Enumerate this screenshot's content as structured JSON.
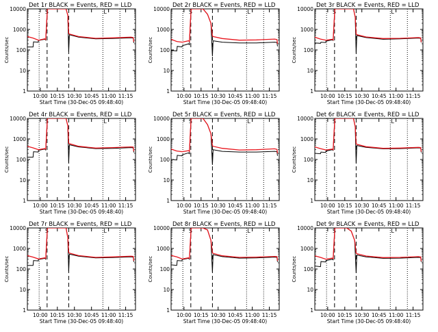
{
  "figure": {
    "x_tick_labels": [
      "10:00",
      "10:15",
      "10:30",
      "10:45",
      "11:00",
      "11:15"
    ],
    "y_tick_labels": [
      "1",
      "10",
      "100",
      "1000",
      "10000"
    ],
    "xlabel": "Start Time (30-Dec-05 09:48:40)",
    "ylabel": "Counts/sec",
    "marker_labels": [
      "S",
      "L"
    ]
  },
  "colors": {
    "events": "#000000",
    "lld": "#e8141c",
    "grid": "#000000"
  },
  "chart_data": [
    {
      "type": "line",
      "title": "Det 1r BLACK = Events, RED = LLD",
      "xlabel": "Start Time (30-Dec-05 09:48:40)",
      "ylabel": "Counts/sec",
      "y_scale": "log",
      "ylim": [
        1,
        10000
      ],
      "x_unit": "minutes after 09:48:40",
      "xlim": [
        0,
        95
      ],
      "x_ticks": [
        11.33,
        26.33,
        41.33,
        56.33,
        71.33,
        86.33
      ],
      "dotted_lines_x": [
        10.33,
        66.33,
        81.33
      ],
      "dashed_lines_x": [
        17.33,
        36.33
      ],
      "series": [
        {
          "name": "BLACK = Events",
          "x": [
            0,
            5,
            5.4,
            9.5,
            9.8,
            15.3,
            16.1,
            16.9,
            17.6,
            31,
            34,
            35.5,
            36.3,
            36.9,
            45,
            60,
            75,
            91,
            93,
            93.5
          ],
          "y": [
            140,
            140,
            250,
            240,
            290,
            330,
            300,
            2000,
            10000,
            10000,
            10000,
            5000,
            80,
            550,
            420,
            350,
            360,
            390,
            380,
            220
          ]
        },
        {
          "name": "RED = LLD",
          "x": [
            0,
            5,
            9.8,
            15.3,
            16.1,
            16.9,
            17.6,
            31,
            34,
            35.5,
            36.3,
            36.9,
            45,
            60,
            75,
            91,
            93,
            93.5
          ],
          "y": [
            450,
            380,
            300,
            350,
            320,
            2000,
            10000,
            10000,
            10000,
            5000,
            650,
            600,
            450,
            370,
            390,
            420,
            400,
            250
          ]
        }
      ]
    },
    {
      "type": "line",
      "title": "Det 2r BLACK = Events, RED = LLD",
      "xlabel": "Start Time (30-Dec-05 09:48:40)",
      "ylabel": "Counts/sec",
      "y_scale": "log",
      "ylim": [
        1,
        10000
      ],
      "x_unit": "minutes after 09:48:40",
      "xlim": [
        0,
        95
      ],
      "x_ticks": [
        11.33,
        26.33,
        41.33,
        56.33,
        71.33,
        86.33
      ],
      "dotted_lines_x": [
        10.33,
        66.33,
        81.33
      ],
      "dashed_lines_x": [
        17.33,
        36.33
      ],
      "series": [
        {
          "name": "BLACK = Events",
          "x": [
            0,
            5,
            5.4,
            9.5,
            9.8,
            15.3,
            16.1,
            16.9,
            17.6,
            28,
            32,
            35,
            36.3,
            36.9,
            45,
            60,
            75,
            91,
            93,
            93.5
          ],
          "y": [
            95,
            90,
            150,
            140,
            160,
            200,
            180,
            2000,
            10000,
            10000,
            5500,
            2000,
            50,
            280,
            240,
            220,
            220,
            240,
            230,
            150
          ]
        },
        {
          "name": "RED = LLD",
          "x": [
            0,
            5,
            9.8,
            15.3,
            16.1,
            16.9,
            17.6,
            28,
            32,
            35,
            36.3,
            36.9,
            45,
            60,
            75,
            91,
            93,
            93.5
          ],
          "y": [
            330,
            260,
            240,
            280,
            260,
            2000,
            10000,
            10000,
            5500,
            2000,
            480,
            450,
            360,
            300,
            310,
            340,
            320,
            200
          ]
        }
      ]
    },
    {
      "type": "line",
      "title": "Det 3r BLACK = Events, RED = LLD",
      "xlabel": "Start Time (30-Dec-05 09:48:40)",
      "ylabel": "Counts/sec",
      "y_scale": "log",
      "ylim": [
        1,
        10000
      ],
      "x_unit": "minutes after 09:48:40",
      "xlim": [
        0,
        95
      ],
      "x_ticks": [
        11.33,
        26.33,
        41.33,
        56.33,
        71.33,
        86.33
      ],
      "dotted_lines_x": [
        10.33,
        66.33,
        81.33
      ],
      "dashed_lines_x": [
        17.33,
        36.33
      ],
      "series": [
        {
          "name": "BLACK = Events",
          "x": [
            0,
            5,
            5.4,
            9.5,
            9.8,
            15.3,
            16.1,
            16.9,
            17.6,
            31,
            34,
            35.5,
            36.3,
            36.9,
            45,
            60,
            75,
            91,
            93,
            93.5
          ],
          "y": [
            220,
            210,
            240,
            230,
            270,
            310,
            290,
            2000,
            10000,
            10000,
            10000,
            4000,
            70,
            500,
            400,
            330,
            350,
            380,
            370,
            230
          ]
        },
        {
          "name": "RED = LLD",
          "x": [
            0,
            5,
            9.8,
            15.3,
            16.1,
            16.9,
            17.6,
            31,
            34,
            35.5,
            36.3,
            36.9,
            45,
            60,
            75,
            91,
            93,
            93.5
          ],
          "y": [
            420,
            340,
            300,
            330,
            310,
            2000,
            10000,
            10000,
            10000,
            4000,
            600,
            560,
            430,
            360,
            370,
            400,
            390,
            240
          ]
        }
      ]
    },
    {
      "type": "line",
      "title": "Det 4r BLACK = Events, RED = LLD",
      "xlabel": "Start Time (30-Dec-05 09:48:40)",
      "ylabel": "Counts/sec",
      "y_scale": "log",
      "ylim": [
        1,
        10000
      ],
      "x_unit": "minutes after 09:48:40",
      "xlim": [
        0,
        95
      ],
      "x_ticks": [
        11.33,
        26.33,
        41.33,
        56.33,
        71.33,
        86.33
      ],
      "dotted_lines_x": [
        10.33,
        66.33,
        81.33
      ],
      "dashed_lines_x": [
        17.33,
        36.33
      ],
      "series": [
        {
          "name": "BLACK = Events",
          "x": [
            0,
            5,
            5.4,
            9.5,
            9.8,
            15.3,
            16.1,
            16.9,
            17.6,
            31,
            34,
            35.5,
            36.3,
            36.9,
            45,
            60,
            75,
            91,
            93,
            93.5
          ],
          "y": [
            130,
            130,
            240,
            230,
            280,
            320,
            290,
            2000,
            10000,
            10000,
            10000,
            4500,
            70,
            520,
            410,
            340,
            350,
            380,
            370,
            220
          ]
        },
        {
          "name": "RED = LLD",
          "x": [
            0,
            5,
            9.8,
            15.3,
            16.1,
            16.9,
            17.6,
            31,
            34,
            35.5,
            36.3,
            36.9,
            45,
            60,
            75,
            91,
            93,
            93.5
          ],
          "y": [
            440,
            370,
            300,
            340,
            320,
            2000,
            10000,
            10000,
            10000,
            4500,
            640,
            590,
            440,
            360,
            380,
            410,
            400,
            250
          ]
        }
      ]
    },
    {
      "type": "line",
      "title": "Det 5r BLACK = Events, RED = LLD",
      "xlabel": "Start Time (30-Dec-05 09:48:40)",
      "ylabel": "Counts/sec",
      "y_scale": "log",
      "ylim": [
        1,
        10000
      ],
      "x_unit": "minutes after 09:48:40",
      "xlim": [
        0,
        95
      ],
      "x_ticks": [
        11.33,
        26.33,
        41.33,
        56.33,
        71.33,
        86.33
      ],
      "dotted_lines_x": [
        10.33,
        66.33,
        81.33
      ],
      "dashed_lines_x": [
        17.33,
        36.33
      ],
      "series": [
        {
          "name": "BLACK = Events",
          "x": [
            0,
            5,
            5.4,
            9.5,
            9.8,
            15.3,
            16.1,
            16.9,
            17.6,
            28,
            32,
            35,
            36.3,
            36.9,
            45,
            60,
            75,
            91,
            93,
            93.5
          ],
          "y": [
            100,
            95,
            160,
            150,
            170,
            210,
            190,
            2000,
            10000,
            10000,
            5000,
            1800,
            55,
            300,
            250,
            230,
            230,
            250,
            240,
            150
          ]
        },
        {
          "name": "RED = LLD",
          "x": [
            0,
            5,
            9.8,
            15.3,
            16.1,
            16.9,
            17.6,
            28,
            32,
            35,
            36.3,
            36.9,
            45,
            60,
            75,
            91,
            93,
            93.5
          ],
          "y": [
            320,
            260,
            240,
            270,
            250,
            2000,
            10000,
            10000,
            5000,
            1800,
            470,
            440,
            350,
            290,
            300,
            330,
            310,
            200
          ]
        }
      ]
    },
    {
      "type": "line",
      "title": "Det 6r BLACK = Events, RED = LLD",
      "xlabel": "Start Time (30-Dec-05 09:48:40)",
      "ylabel": "Counts/sec",
      "y_scale": "log",
      "ylim": [
        1,
        10000
      ],
      "x_unit": "minutes after 09:48:40",
      "xlim": [
        0,
        95
      ],
      "x_ticks": [
        11.33,
        26.33,
        41.33,
        56.33,
        71.33,
        86.33
      ],
      "dotted_lines_x": [
        10.33,
        66.33,
        81.33
      ],
      "dashed_lines_x": [
        17.33,
        36.33
      ],
      "series": [
        {
          "name": "BLACK = Events",
          "x": [
            0,
            5,
            5.4,
            9.5,
            9.8,
            15.3,
            16.1,
            16.9,
            17.6,
            31,
            34,
            35.5,
            36.3,
            36.9,
            45,
            60,
            75,
            91,
            93,
            93.5
          ],
          "y": [
            200,
            190,
            230,
            220,
            260,
            300,
            280,
            2000,
            10000,
            10000,
            10000,
            4000,
            65,
            480,
            390,
            330,
            340,
            370,
            360,
            220
          ]
        },
        {
          "name": "RED = LLD",
          "x": [
            0,
            5,
            9.8,
            15.3,
            16.1,
            16.9,
            17.6,
            31,
            34,
            35.5,
            36.3,
            36.9,
            45,
            60,
            75,
            91,
            93,
            93.5
          ],
          "y": [
            410,
            340,
            290,
            320,
            300,
            2000,
            10000,
            10000,
            10000,
            4000,
            590,
            550,
            420,
            350,
            360,
            390,
            380,
            240
          ]
        }
      ]
    },
    {
      "type": "line",
      "title": "Det 7r BLACK = Events, RED = LLD",
      "xlabel": "Start Time (30-Dec-05 09:48:40)",
      "ylabel": "Counts/sec",
      "y_scale": "log",
      "ylim": [
        1,
        10000
      ],
      "x_unit": "minutes after 09:48:40",
      "xlim": [
        0,
        95
      ],
      "x_ticks": [
        11.33,
        26.33,
        41.33,
        56.33,
        71.33,
        86.33
      ],
      "dotted_lines_x": [
        10.33,
        66.33,
        81.33
      ],
      "dashed_lines_x": [
        17.33,
        36.33
      ],
      "series": [
        {
          "name": "BLACK = Events",
          "x": [
            0,
            5,
            5.4,
            9.5,
            9.8,
            15.3,
            16.1,
            16.9,
            17.6,
            31,
            34,
            35.5,
            36.3,
            36.9,
            45,
            60,
            75,
            91,
            93,
            93.5
          ],
          "y": [
            150,
            150,
            260,
            250,
            290,
            330,
            300,
            2000,
            10000,
            10000,
            10000,
            3500,
            75,
            530,
            420,
            350,
            360,
            390,
            380,
            220
          ]
        },
        {
          "name": "RED = LLD",
          "x": [
            0,
            5,
            9.8,
            15.3,
            16.1,
            16.9,
            17.6,
            31,
            34,
            35.5,
            36.3,
            36.9,
            45,
            60,
            75,
            91,
            93,
            93.5
          ],
          "y": [
            450,
            380,
            310,
            350,
            330,
            2000,
            10000,
            10000,
            10000,
            3500,
            650,
            600,
            450,
            370,
            390,
            420,
            410,
            250
          ]
        }
      ]
    },
    {
      "type": "line",
      "title": "Det 8r BLACK = Events, RED = LLD",
      "xlabel": "Start Time (30-Dec-05 09:48:40)",
      "ylabel": "Counts/sec",
      "y_scale": "log",
      "ylim": [
        1,
        10000
      ],
      "x_unit": "minutes after 09:48:40",
      "xlim": [
        0,
        95
      ],
      "x_ticks": [
        11.33,
        26.33,
        41.33,
        56.33,
        71.33,
        86.33
      ],
      "dotted_lines_x": [
        10.33,
        66.33,
        81.33
      ],
      "dashed_lines_x": [
        17.33,
        36.33
      ],
      "series": [
        {
          "name": "BLACK = Events",
          "x": [
            0,
            5,
            5.4,
            9.5,
            9.8,
            15.3,
            16.1,
            16.9,
            17.6,
            28,
            32,
            35,
            36.3,
            36.9,
            45,
            60,
            75,
            91,
            93,
            93.5
          ],
          "y": [
            160,
            150,
            260,
            250,
            290,
            330,
            300,
            2000,
            10000,
            10000,
            8000,
            2500,
            70,
            500,
            400,
            340,
            350,
            380,
            370,
            220
          ]
        },
        {
          "name": "RED = LLD",
          "x": [
            0,
            5,
            9.8,
            15.3,
            16.1,
            16.9,
            17.6,
            28,
            32,
            35,
            36.3,
            36.9,
            45,
            60,
            75,
            91,
            93,
            93.5
          ],
          "y": [
            460,
            390,
            310,
            350,
            330,
            2000,
            10000,
            10000,
            8000,
            2500,
            620,
            580,
            440,
            370,
            380,
            410,
            400,
            250
          ]
        }
      ]
    },
    {
      "type": "line",
      "title": "Det 9r BLACK = Events, RED = LLD",
      "xlabel": "Start Time (30-Dec-05 09:48:40)",
      "ylabel": "Counts/sec",
      "y_scale": "log",
      "ylim": [
        1,
        10000
      ],
      "x_unit": "minutes after 09:48:40",
      "xlim": [
        0,
        95
      ],
      "x_ticks": [
        11.33,
        26.33,
        41.33,
        56.33,
        71.33,
        86.33
      ],
      "dotted_lines_x": [
        10.33,
        66.33,
        81.33
      ],
      "dashed_lines_x": [
        17.33,
        36.33
      ],
      "series": [
        {
          "name": "BLACK = Events",
          "x": [
            0,
            5,
            5.4,
            9.5,
            9.8,
            15.3,
            16.1,
            16.9,
            17.6,
            28,
            32,
            35,
            36.3,
            36.9,
            45,
            60,
            75,
            91,
            93,
            93.5
          ],
          "y": [
            140,
            130,
            230,
            220,
            260,
            300,
            280,
            2000,
            10000,
            10000,
            7000,
            2500,
            65,
            480,
            390,
            330,
            340,
            370,
            360,
            220
          ]
        },
        {
          "name": "RED = LLD",
          "x": [
            0,
            5,
            9.8,
            15.3,
            16.1,
            16.9,
            17.6,
            28,
            32,
            35,
            36.3,
            36.9,
            45,
            60,
            75,
            91,
            93,
            93.5
          ],
          "y": [
            440,
            370,
            300,
            340,
            320,
            2000,
            10000,
            10000,
            7000,
            2500,
            600,
            560,
            430,
            360,
            370,
            400,
            390,
            240
          ]
        }
      ]
    }
  ]
}
